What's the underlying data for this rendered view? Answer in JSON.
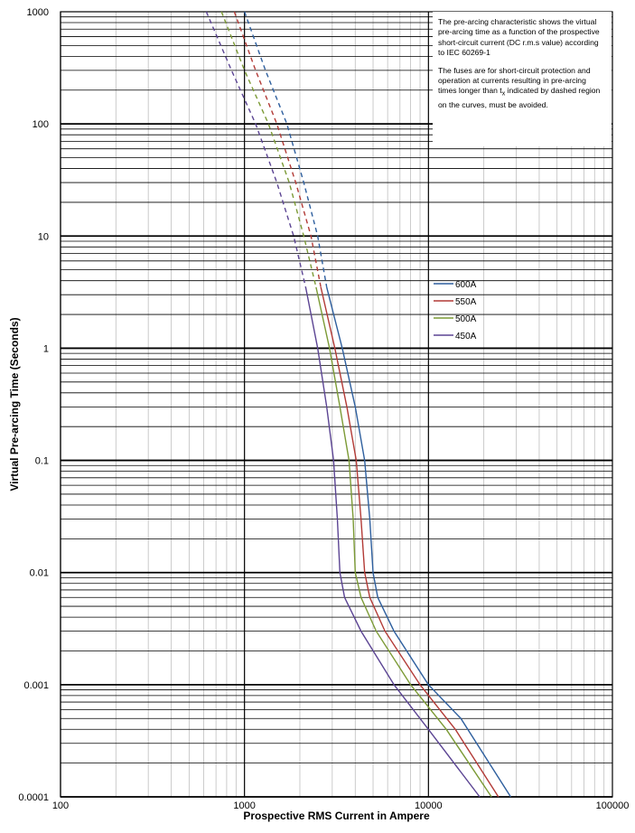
{
  "chart_data": {
    "type": "line",
    "title": "",
    "xlabel": "Prospective RMS Current in Ampere",
    "ylabel": "Virtual Pre-arcing Time (Seconds)",
    "x_scale": "log",
    "y_scale": "log",
    "xlim": [
      100,
      100000
    ],
    "ylim": [
      0.0001,
      1000
    ],
    "x_ticks": [
      {
        "value": 100,
        "label": "100"
      },
      {
        "value": 1000,
        "label": "1000"
      },
      {
        "value": 10000,
        "label": "10000"
      },
      {
        "value": 100000,
        "label": "100000"
      }
    ],
    "y_ticks": [
      {
        "value": 1000,
        "label": "1000"
      },
      {
        "value": 100,
        "label": "100"
      },
      {
        "value": 10,
        "label": "10"
      },
      {
        "value": 1,
        "label": "1"
      },
      {
        "value": 0.1,
        "label": "0.1"
      },
      {
        "value": 0.01,
        "label": "0.01"
      },
      {
        "value": 0.001,
        "label": "0.001"
      },
      {
        "value": 0.0001,
        "label": "0.0001"
      }
    ],
    "grid": true,
    "legend_position": "right-middle",
    "notes": {
      "p1": "The pre-arcing characteristic shows the virtual pre-arcing time as a function of the prospective short-circuit current (DC r.m.s value) according to IEC 60269-1",
      "p2_before": "The fuses are for short-circuit protection and operation at currents resulting in pre-arcing  times longer than t",
      "p2_sub": "x",
      "p2_after": " indicated by dashed region on the curves, must be avoided."
    },
    "series": [
      {
        "name": "600A",
        "color": "#2e5f9e",
        "dashed": [
          [
            1000,
            1000
          ],
          [
            1300,
            300
          ],
          [
            1700,
            100
          ],
          [
            2100,
            30
          ],
          [
            2500,
            10
          ],
          [
            2800,
            3.5
          ]
        ],
        "solid": [
          [
            2800,
            3.5
          ],
          [
            3400,
            1
          ],
          [
            4000,
            0.3
          ],
          [
            4500,
            0.1
          ],
          [
            4800,
            0.03
          ],
          [
            5000,
            0.01
          ],
          [
            5300,
            0.006
          ],
          [
            6500,
            0.003
          ],
          [
            10000,
            0.001
          ],
          [
            15000,
            0.0005
          ],
          [
            28000,
            0.0001
          ]
        ]
      },
      {
        "name": "550A",
        "color": "#b23a36",
        "dashed": [
          [
            880,
            1000
          ],
          [
            1150,
            300
          ],
          [
            1500,
            100
          ],
          [
            1900,
            30
          ],
          [
            2300,
            10
          ],
          [
            2600,
            3.5
          ]
        ],
        "solid": [
          [
            2600,
            3.5
          ],
          [
            3100,
            1
          ],
          [
            3600,
            0.3
          ],
          [
            4050,
            0.1
          ],
          [
            4300,
            0.03
          ],
          [
            4500,
            0.01
          ],
          [
            4800,
            0.006
          ],
          [
            5800,
            0.003
          ],
          [
            9000,
            0.001
          ],
          [
            14000,
            0.0004
          ],
          [
            24000,
            0.0001
          ]
        ]
      },
      {
        "name": "500A",
        "color": "#7b9a35",
        "dashed": [
          [
            750,
            1000
          ],
          [
            1000,
            300
          ],
          [
            1350,
            100
          ],
          [
            1750,
            30
          ],
          [
            2100,
            10
          ],
          [
            2450,
            3.5
          ]
        ],
        "solid": [
          [
            2450,
            3.5
          ],
          [
            2900,
            1
          ],
          [
            3300,
            0.3
          ],
          [
            3700,
            0.1
          ],
          [
            3900,
            0.03
          ],
          [
            4000,
            0.01
          ],
          [
            4300,
            0.006
          ],
          [
            5200,
            0.003
          ],
          [
            8000,
            0.001
          ],
          [
            12500,
            0.0004
          ],
          [
            22000,
            0.0001
          ]
        ]
      },
      {
        "name": "450A",
        "color": "#5b4493",
        "dashed": [
          [
            620,
            1000
          ],
          [
            850,
            300
          ],
          [
            1150,
            100
          ],
          [
            1500,
            30
          ],
          [
            1850,
            10
          ],
          [
            2150,
            3.5
          ]
        ],
        "solid": [
          [
            2150,
            3.5
          ],
          [
            2500,
            1
          ],
          [
            2800,
            0.3
          ],
          [
            3050,
            0.1
          ],
          [
            3200,
            0.03
          ],
          [
            3300,
            0.01
          ],
          [
            3500,
            0.006
          ],
          [
            4300,
            0.003
          ],
          [
            6500,
            0.001
          ],
          [
            10000,
            0.0004
          ],
          [
            19000,
            0.0001
          ]
        ]
      }
    ]
  }
}
